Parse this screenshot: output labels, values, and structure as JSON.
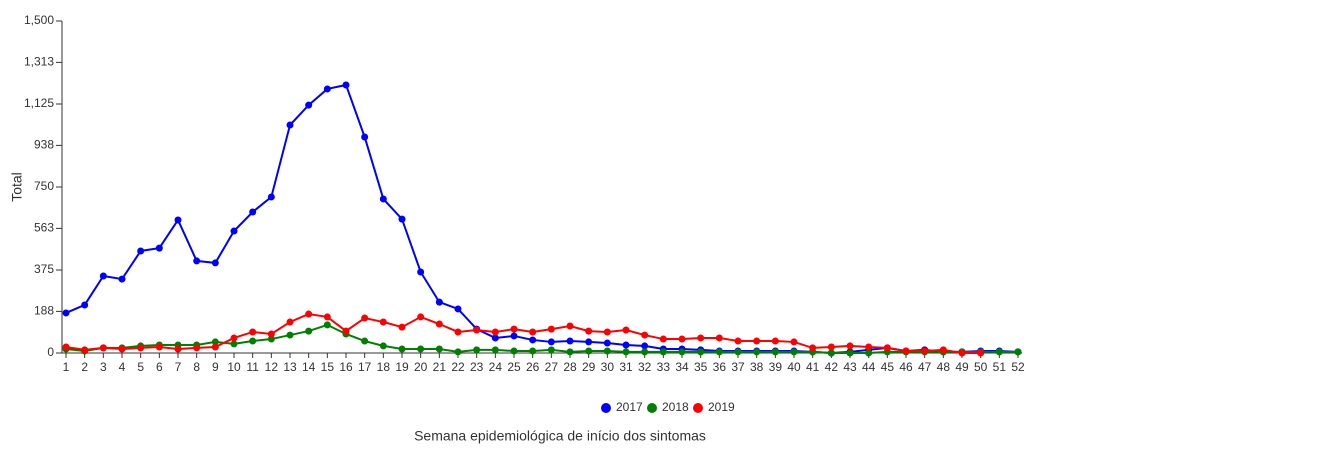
{
  "chart_data": {
    "type": "line",
    "x_label": "Semana epidemiológica de início dos sintomas",
    "y_label": "Total",
    "categories": [
      "1",
      "2",
      "3",
      "4",
      "5",
      "6",
      "7",
      "8",
      "9",
      "10",
      "11",
      "12",
      "13",
      "14",
      "15",
      "16",
      "17",
      "18",
      "19",
      "20",
      "21",
      "22",
      "23",
      "24",
      "25",
      "26",
      "27",
      "28",
      "29",
      "30",
      "31",
      "32",
      "33",
      "34",
      "35",
      "36",
      "37",
      "38",
      "39",
      "40",
      "41",
      "42",
      "43",
      "44",
      "45",
      "46",
      "47",
      "48",
      "49",
      "50",
      "51",
      "52"
    ],
    "ylim": [
      0,
      1500
    ],
    "yticks": [
      0,
      188,
      375,
      563,
      750,
      938,
      {
        "value": 1125,
        "label": "1,125"
      },
      {
        "value": 1313,
        "label": "1,313"
      },
      {
        "value": 1500,
        "label": "1,500"
      }
    ],
    "series": [
      {
        "name": "2017",
        "color": "#0000ff",
        "values": [
          181,
          217,
          348,
          334,
          461,
          474,
          601,
          416,
          407,
          551,
          637,
          705,
          1030,
          1120,
          1193,
          1211,
          976,
          696,
          605,
          366,
          230,
          199,
          108,
          68,
          77,
          59,
          50,
          54,
          50,
          45,
          36,
          32,
          18,
          18,
          14,
          9,
          9,
          9,
          9,
          9,
          5,
          0,
          5,
          14,
          23,
          9,
          14,
          5,
          5,
          9,
          9,
          5
        ]
      },
      {
        "name": "2018",
        "color": "#008000",
        "values": [
          18,
          9,
          23,
          23,
          32,
          36,
          36,
          36,
          50,
          41,
          54,
          63,
          81,
          99,
          127,
          86,
          54,
          32,
          18,
          18,
          18,
          5,
          14,
          14,
          9,
          9,
          14,
          5,
          9,
          9,
          5,
          5,
          5,
          5,
          5,
          5,
          5,
          5,
          5,
          5,
          5,
          0,
          0,
          0,
          5,
          5,
          5,
          5,
          5,
          5,
          5,
          5
        ]
      },
      {
        "name": "2019",
        "color": "#ff0000",
        "values": [
          27,
          14,
          23,
          18,
          23,
          27,
          18,
          23,
          27,
          68,
          95,
          86,
          140,
          176,
          163,
          99,
          158,
          140,
          117,
          163,
          131,
          95,
          104,
          95,
          108,
          95,
          108,
          122,
          99,
          95,
          104,
          81,
          63,
          63,
          68,
          68,
          54,
          54,
          54,
          50,
          23,
          27,
          32,
          27,
          23,
          9,
          9,
          14,
          0,
          0,
          null,
          null
        ]
      }
    ]
  }
}
